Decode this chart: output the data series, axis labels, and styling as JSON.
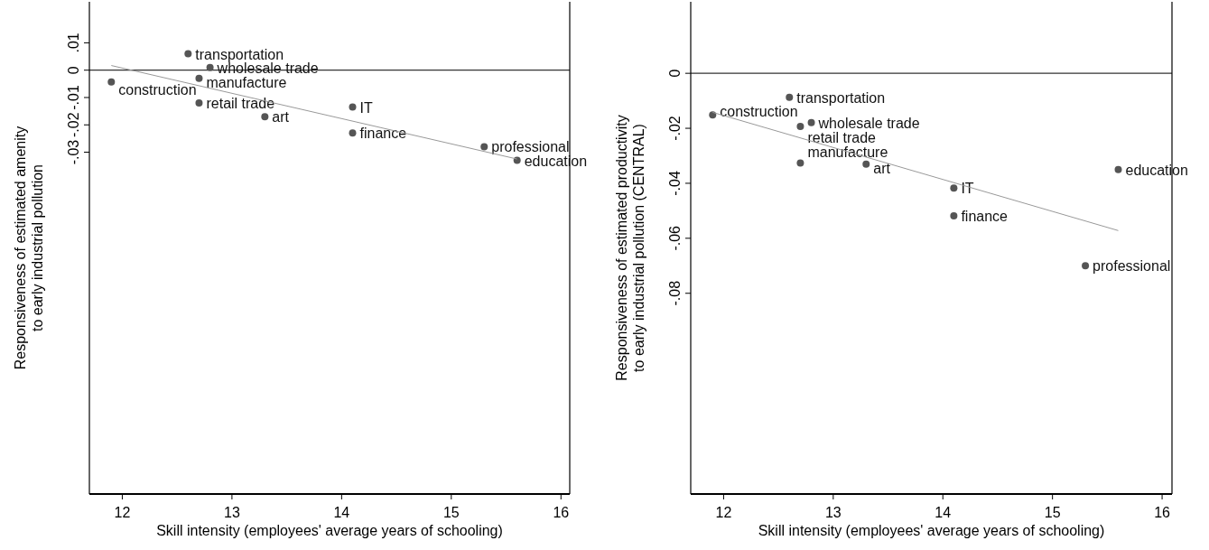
{
  "chart_data": [
    {
      "type": "scatter",
      "xlabel": "Skill intensity (employees' average years of schooling)",
      "ylabel": "Responsiveness of estimated amenity\nto early industrial pollution",
      "xlim": [
        11.7,
        16.08
      ],
      "xticks": [
        12,
        13,
        14,
        15,
        16
      ],
      "ylim": [
        -0.155,
        0.025
      ],
      "yticks": [
        {
          "value": -0.03,
          "label": "-.03"
        },
        {
          "value": -0.02,
          "label": "-.02"
        },
        {
          "value": -0.01,
          "label": "-.01"
        },
        {
          "value": 0,
          "label": "0"
        },
        {
          "value": 0.01,
          "label": ".01"
        }
      ],
      "grid": false,
      "ref_lines": [
        {
          "axis": "y",
          "value": 0,
          "color": "#333333"
        }
      ],
      "series": [
        {
          "marker": "circle",
          "color": "#555555",
          "x": [
            12.6,
            12.8,
            12.7,
            11.9,
            12.7,
            13.3,
            14.1,
            14.1,
            15.3,
            15.6
          ],
          "values": [
            0.006,
            0.001,
            -0.003,
            -0.0043,
            -0.012,
            -0.017,
            -0.0135,
            -0.023,
            -0.028,
            -0.033
          ]
        },
        {
          "type": "line",
          "color": "#999999",
          "x": [
            11.9,
            15.6
          ],
          "values": [
            0.0017,
            -0.0325
          ]
        }
      ],
      "annotations": [
        {
          "text": "transportation",
          "x": 12.6,
          "y": 0.006
        },
        {
          "text": "wholesale trade",
          "x": 12.8,
          "y": 0.001
        },
        {
          "text": "manufacture",
          "x": 12.7,
          "y": -0.003
        },
        {
          "text": "construction",
          "x": 11.9,
          "y": -0.0043
        },
        {
          "text": "retail trade",
          "x": 12.7,
          "y": -0.012
        },
        {
          "text": "art",
          "x": 13.3,
          "y": -0.017
        },
        {
          "text": "IT",
          "x": 14.1,
          "y": -0.0135
        },
        {
          "text": "finance",
          "x": 14.1,
          "y": -0.023
        },
        {
          "text": "professional",
          "x": 15.3,
          "y": -0.028
        },
        {
          "text": "education",
          "x": 15.6,
          "y": -0.033
        }
      ]
    },
    {
      "type": "scatter",
      "xlabel": "Skill intensity (employees' average years of schooling)",
      "ylabel": "Responsiveness of estimated productivity\nto early industrial pollution (CENTRAL)",
      "xlim": [
        11.7,
        16.09
      ],
      "xticks": [
        12,
        13,
        14,
        15,
        16
      ],
      "ylim": [
        -0.153,
        0.026
      ],
      "yticks": [
        {
          "value": -0.08,
          "label": "-.08"
        },
        {
          "value": -0.06,
          "label": "-.06"
        },
        {
          "value": -0.04,
          "label": "-.04"
        },
        {
          "value": -0.02,
          "label": "-.02"
        },
        0
      ],
      "grid": false,
      "ref_lines": [
        {
          "axis": "y",
          "value": 0,
          "color": "#333333"
        }
      ],
      "series": [
        {
          "marker": "circle",
          "color": "#555555",
          "x": [
            12.6,
            11.9,
            12.8,
            12.7,
            12.7,
            13.3,
            15.6,
            14.1,
            14.1,
            15.3
          ],
          "values": [
            -0.0087,
            -0.0151,
            -0.0179,
            -0.0193,
            -0.0326,
            -0.033,
            -0.035,
            -0.0417,
            -0.0518,
            -0.07
          ]
        },
        {
          "type": "line",
          "color": "#999999",
          "x": [
            11.9,
            15.6
          ],
          "values": [
            -0.0142,
            -0.0572
          ]
        }
      ],
      "annotations": [
        {
          "text": "transportation",
          "x": 12.6,
          "y": -0.0087
        },
        {
          "text": "construction",
          "x": 11.9,
          "y": -0.0151
        },
        {
          "text": "wholesale trade",
          "x": 12.8,
          "y": -0.0179
        },
        {
          "text": "retail trade",
          "x": 12.7,
          "y": -0.0193
        },
        {
          "text": "manufacture",
          "x": 12.7,
          "y": -0.0326
        },
        {
          "text": "art",
          "x": 13.3,
          "y": -0.033
        },
        {
          "text": "education",
          "x": 15.6,
          "y": -0.035
        },
        {
          "text": "IT",
          "x": 14.1,
          "y": -0.0417
        },
        {
          "text": "finance",
          "x": 14.1,
          "y": -0.0518
        },
        {
          "text": "professional",
          "x": 15.3,
          "y": -0.07
        }
      ]
    }
  ]
}
